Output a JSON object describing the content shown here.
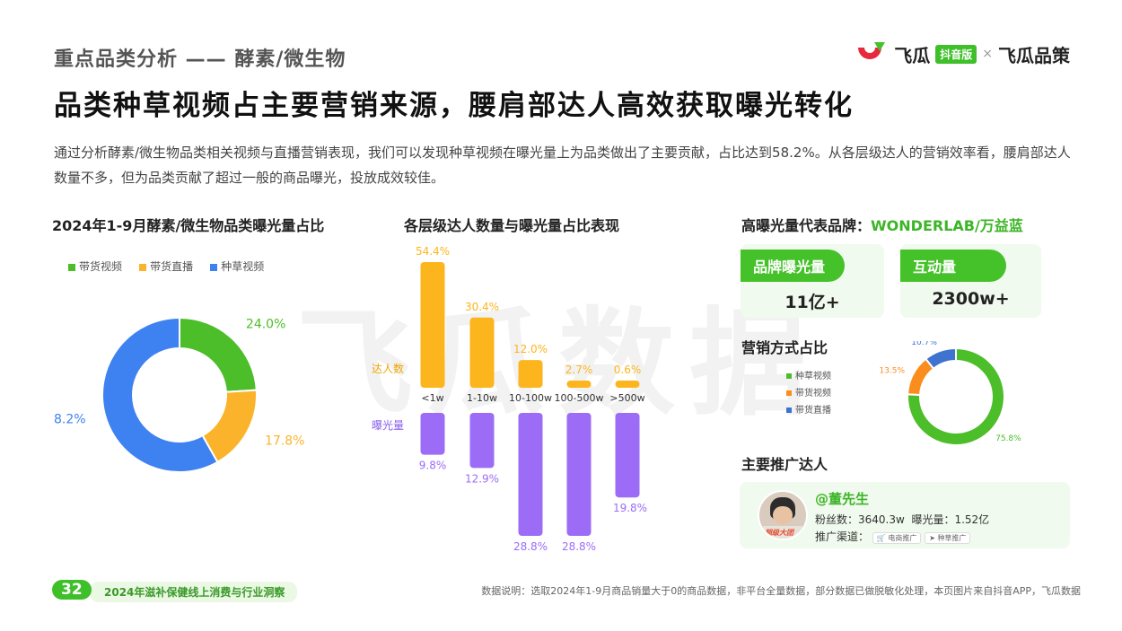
{
  "header": {
    "section_title": "重点品类分析 —— 酵素/微生物",
    "main_title": "品类种草视频占主要营销来源，腰肩部达人高效获取曝光转化",
    "intro": "通过分析酵素/微生物品类相关视频与直播营销表现，我们可以发现种草视频在曝光量上为品类做出了主要贡献，占比达到58.2%。从各层级达人的营销效率看，腰肩部达人数量不多，但为品类贡献了超过一般的商品曝光，投放成效较佳。",
    "logo": {
      "brand": "飞瓜",
      "badge": "抖音版",
      "separator": "×",
      "partner": "飞瓜品策"
    },
    "watermark": "飞瓜数据"
  },
  "colors": {
    "green": "#4cbe2a",
    "orange": "#fbb32b",
    "blue": "#3d82f0",
    "bar_orange": "#fdb51d",
    "bar_purple": "#9c6cf7",
    "kpi_green": "#45c12a"
  },
  "chart_data": [
    {
      "type": "pie",
      "title": "2024年1-9月酵素/微生物品类曝光量占比",
      "legend": [
        "带货视频",
        "带货直播",
        "种草视频"
      ],
      "slices": [
        {
          "label": "带货视频",
          "value": 24.0,
          "display": "24.0%",
          "color": "#4cbe2a"
        },
        {
          "label": "带货直播",
          "value": 17.8,
          "display": "17.8%",
          "color": "#fbb32b"
        },
        {
          "label": "种草视频",
          "value": 58.2,
          "display": "58.2%",
          "color": "#3d82f0"
        }
      ],
      "donut": true
    },
    {
      "type": "bar",
      "title": "各层级达人数量与曝光量占比表现",
      "categories": [
        "<1w",
        "1-10w",
        "10-100w",
        "100-500w",
        ">500w"
      ],
      "series": [
        {
          "name": "达人数",
          "values": [
            54.4,
            30.4,
            12.0,
            2.7,
            0.6
          ],
          "labels": [
            "54.4%",
            "30.4%",
            "12.0%",
            "2.7%",
            "0.6%"
          ],
          "color": "#fdb51d"
        },
        {
          "name": "曝光量",
          "values": [
            9.8,
            12.9,
            28.8,
            28.8,
            19.8
          ],
          "labels": [
            "9.8%",
            "12.9%",
            "28.8%",
            "28.8%",
            "19.8%"
          ],
          "color": "#9c6cf7"
        }
      ]
    },
    {
      "type": "pie",
      "title": "营销方式占比",
      "legend": [
        "种草视频",
        "带货视频",
        "带货直播"
      ],
      "slices": [
        {
          "label": "种草视频",
          "value": 75.8,
          "display": "75.8%",
          "color": "#4cbe2a"
        },
        {
          "label": "带货视频",
          "value": 13.5,
          "display": "13.5%",
          "color": "#fb8d1e"
        },
        {
          "label": "带货直播",
          "value": 10.7,
          "display": "10.7%",
          "color": "#3f73cf"
        }
      ],
      "donut": true
    }
  ],
  "brand_panel": {
    "title_prefix": "高曝光量代表品牌：",
    "brand": "WONDERLAB/万益蓝",
    "kpis": [
      {
        "label": "品牌曝光量",
        "value": "11亿+"
      },
      {
        "label": "互动量",
        "value": "2300w+"
      }
    ],
    "marketing_title": "营销方式占比",
    "promoter_title": "主要推广达人",
    "promoter": {
      "name": "@董先生",
      "fans": "粉丝数：3640.3w",
      "exposure": "曝光量：1.52亿",
      "channels_label": "推广渠道：",
      "channels": [
        "电商推广",
        "种草推广"
      ],
      "avatar_badge": "超级大团"
    }
  },
  "footer": {
    "page": "32",
    "report": "2024年滋补保健线上消费与行业洞察",
    "note": "数据说明：选取2024年1-9月商品销量大于0的商品数据，非平台全量数据，部分数据已做脱敏化处理，本页图片来自抖音APP，飞瓜数据"
  }
}
